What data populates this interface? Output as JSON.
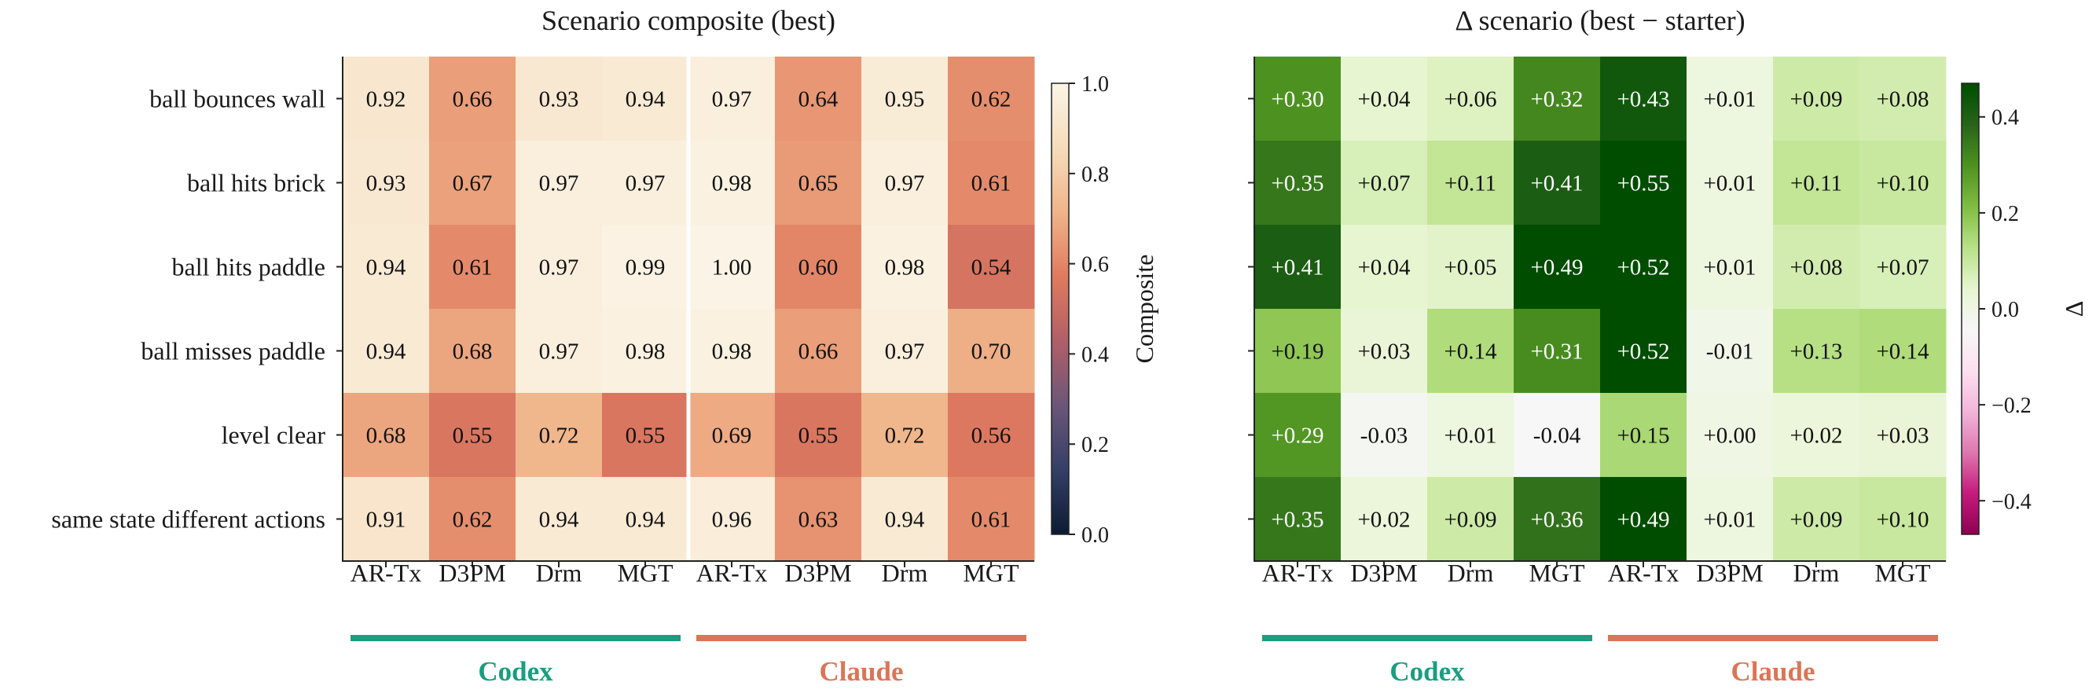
{
  "chart_data": [
    {
      "type": "heatmap",
      "title": "Scenario composite (best)",
      "rows": [
        "ball bounces wall",
        "ball hits brick",
        "ball hits paddle",
        "ball misses paddle",
        "level clear",
        "same state different actions"
      ],
      "columns": [
        "AR-Tx",
        "D3PM",
        "Drm",
        "MGT",
        "AR-Tx",
        "D3PM",
        "Drm",
        "MGT"
      ],
      "groups": [
        {
          "name": "Codex",
          "color": "#1a9e7f",
          "columns": [
            0,
            1,
            2,
            3
          ]
        },
        {
          "name": "Claude",
          "color": "#dc7555",
          "columns": [
            4,
            5,
            6,
            7
          ]
        }
      ],
      "values": [
        [
          0.92,
          0.66,
          0.93,
          0.94,
          0.97,
          0.64,
          0.95,
          0.62
        ],
        [
          0.93,
          0.67,
          0.97,
          0.97,
          0.98,
          0.65,
          0.97,
          0.61
        ],
        [
          0.94,
          0.61,
          0.97,
          0.99,
          1.0,
          0.6,
          0.98,
          0.54
        ],
        [
          0.94,
          0.68,
          0.97,
          0.98,
          0.98,
          0.66,
          0.97,
          0.7
        ],
        [
          0.68,
          0.55,
          0.72,
          0.55,
          0.69,
          0.55,
          0.72,
          0.56
        ],
        [
          0.91,
          0.62,
          0.94,
          0.94,
          0.96,
          0.63,
          0.94,
          0.61
        ]
      ],
      "value_format": "fixed2",
      "colorbar": {
        "label": "Composite",
        "range": [
          0.0,
          1.0
        ],
        "ticks": [
          "0.0",
          "0.2",
          "0.4",
          "0.6",
          "0.8",
          "1.0"
        ],
        "colormap": [
          "#0c1b33",
          "#343f67",
          "#6b5678",
          "#b05f69",
          "#e07a5e",
          "#f0b48a",
          "#f6dcbb",
          "#fbf4e6"
        ]
      },
      "group_separator": true
    },
    {
      "type": "heatmap",
      "title": "Δ scenario (best − starter)",
      "rows": [
        "ball bounces wall",
        "ball hits brick",
        "ball hits paddle",
        "ball misses paddle",
        "level clear",
        "same state different actions"
      ],
      "columns": [
        "AR-Tx",
        "D3PM",
        "Drm",
        "MGT",
        "AR-Tx",
        "D3PM",
        "Drm",
        "MGT"
      ],
      "groups": [
        {
          "name": "Codex",
          "color": "#1a9e7f",
          "columns": [
            0,
            1,
            2,
            3
          ]
        },
        {
          "name": "Claude",
          "color": "#dc7555",
          "columns": [
            4,
            5,
            6,
            7
          ]
        }
      ],
      "values": [
        [
          0.3,
          0.04,
          0.06,
          0.32,
          0.43,
          0.01,
          0.09,
          0.08
        ],
        [
          0.35,
          0.07,
          0.11,
          0.41,
          0.55,
          0.01,
          0.11,
          0.1
        ],
        [
          0.41,
          0.04,
          0.05,
          0.49,
          0.52,
          0.01,
          0.08,
          0.07
        ],
        [
          0.19,
          0.03,
          0.14,
          0.31,
          0.52,
          -0.01,
          0.13,
          0.14
        ],
        [
          0.29,
          -0.03,
          0.01,
          -0.04,
          0.15,
          0.0,
          0.02,
          0.03
        ],
        [
          0.35,
          0.02,
          0.09,
          0.36,
          0.49,
          0.01,
          0.09,
          0.1
        ]
      ],
      "value_format": "signed2",
      "colorbar": {
        "label": "Δ",
        "range": [
          -0.47,
          0.47
        ],
        "ticks": [
          "−0.4",
          "−0.2",
          "0.0",
          "0.2",
          "0.4"
        ],
        "tick_values": [
          -0.4,
          -0.2,
          0.0,
          0.2,
          0.4
        ],
        "colormap": [
          "#8e0152",
          "#c51b7d",
          "#de77ae",
          "#f1b6da",
          "#fde0ef",
          "#f7f7f7",
          "#e6f5d0",
          "#b8e186",
          "#7fbc41",
          "#4d9221",
          "#276419",
          "#004d00"
        ]
      },
      "group_separator": false
    }
  ]
}
